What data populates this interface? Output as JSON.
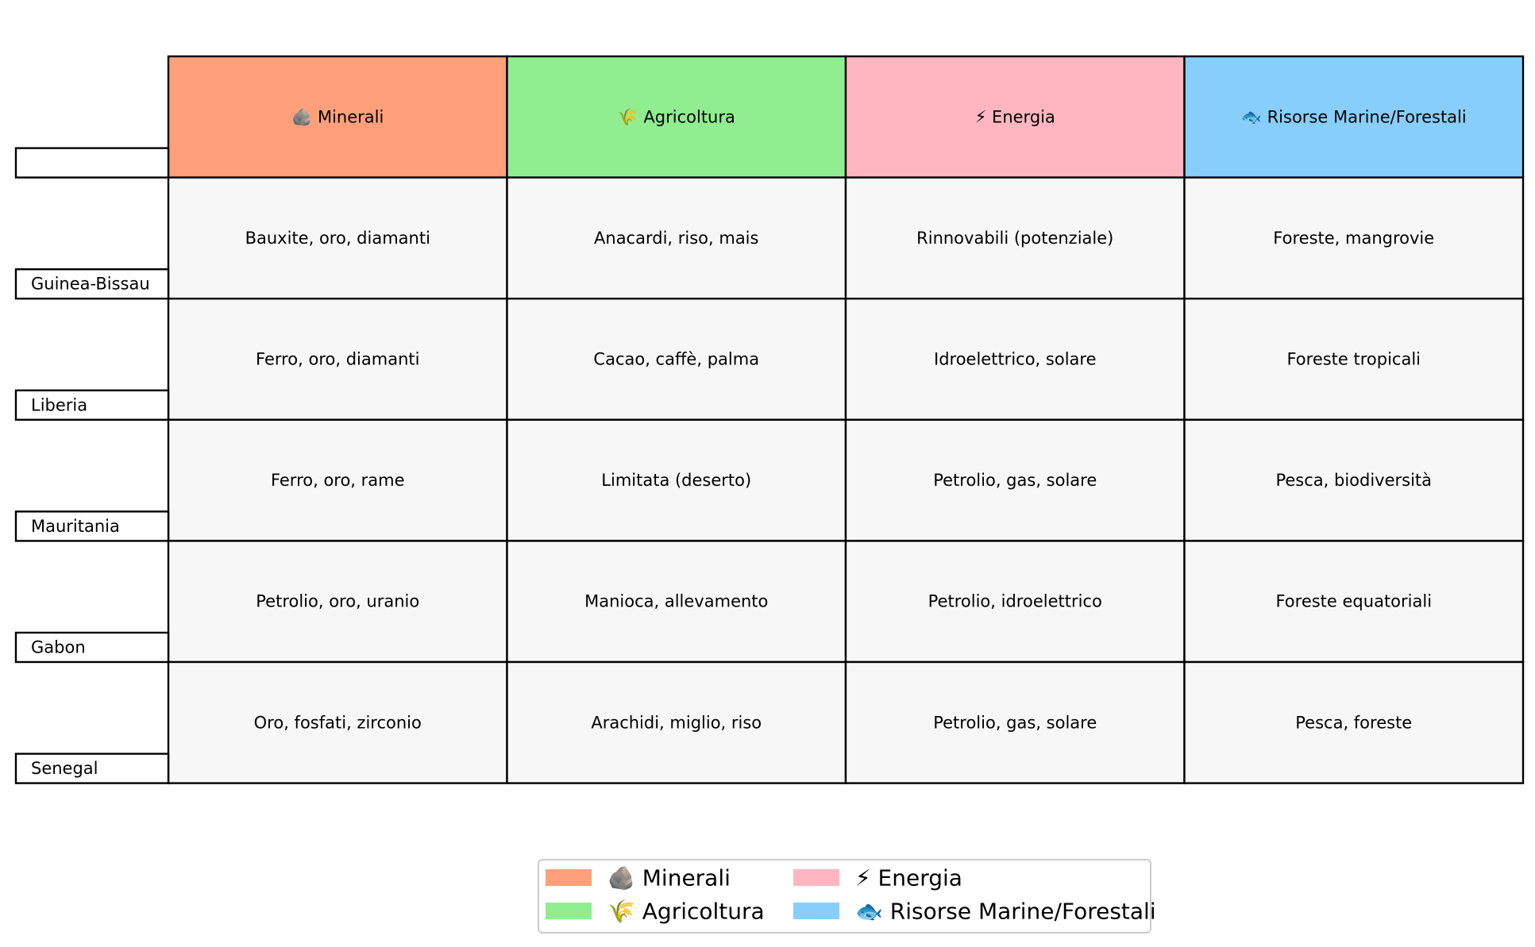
{
  "chart_data": {
    "type": "table",
    "columns": [
      {
        "label": "🪨 Minerali",
        "color": "#FFA07A"
      },
      {
        "label": "🌾 Agricoltura",
        "color": "#90EE90"
      },
      {
        "label": "⚡ Energia",
        "color": "#FFB6C1"
      },
      {
        "label": "🐟 Risorse Marine/Forestali",
        "color": "#87CEFA"
      }
    ],
    "rows": [
      {
        "label": "Guinea-Bissau",
        "cells": [
          "Bauxite, oro, diamanti",
          "Anacardi, riso, mais",
          "Rinnovabili (potenziale)",
          "Foreste, mangrovie"
        ]
      },
      {
        "label": "Liberia",
        "cells": [
          "Ferro, oro, diamanti",
          "Cacao, caffè, palma",
          "Idroelettrico, solare",
          "Foreste tropicali"
        ]
      },
      {
        "label": "Mauritania",
        "cells": [
          "Ferro, oro, rame",
          "Limitata (deserto)",
          "Petrolio, gas, solare",
          "Pesca, biodiversità"
        ]
      },
      {
        "label": "Gabon",
        "cells": [
          "Petrolio, oro, uranio",
          "Manioca, allevamento",
          "Petrolio, idroelettrico",
          "Foreste equatoriali"
        ]
      },
      {
        "label": "Senegal",
        "cells": [
          "Oro, fosfati, zirconio",
          "Arachidi, miglio, riso",
          "Petrolio, gas, solare",
          "Pesca, foreste"
        ]
      }
    ],
    "cell_color": "#F7F7F7",
    "legend": {
      "placement": "bottom-center",
      "items": [
        {
          "label": "🪨 Minerali",
          "color": "#FFA07A"
        },
        {
          "label": "🌾 Agricoltura",
          "color": "#90EE90"
        },
        {
          "label": "⚡ Energia",
          "color": "#FFB6C1"
        },
        {
          "label": "🐟 Risorse Marine/Forestali",
          "color": "#87CEFA"
        }
      ]
    }
  }
}
